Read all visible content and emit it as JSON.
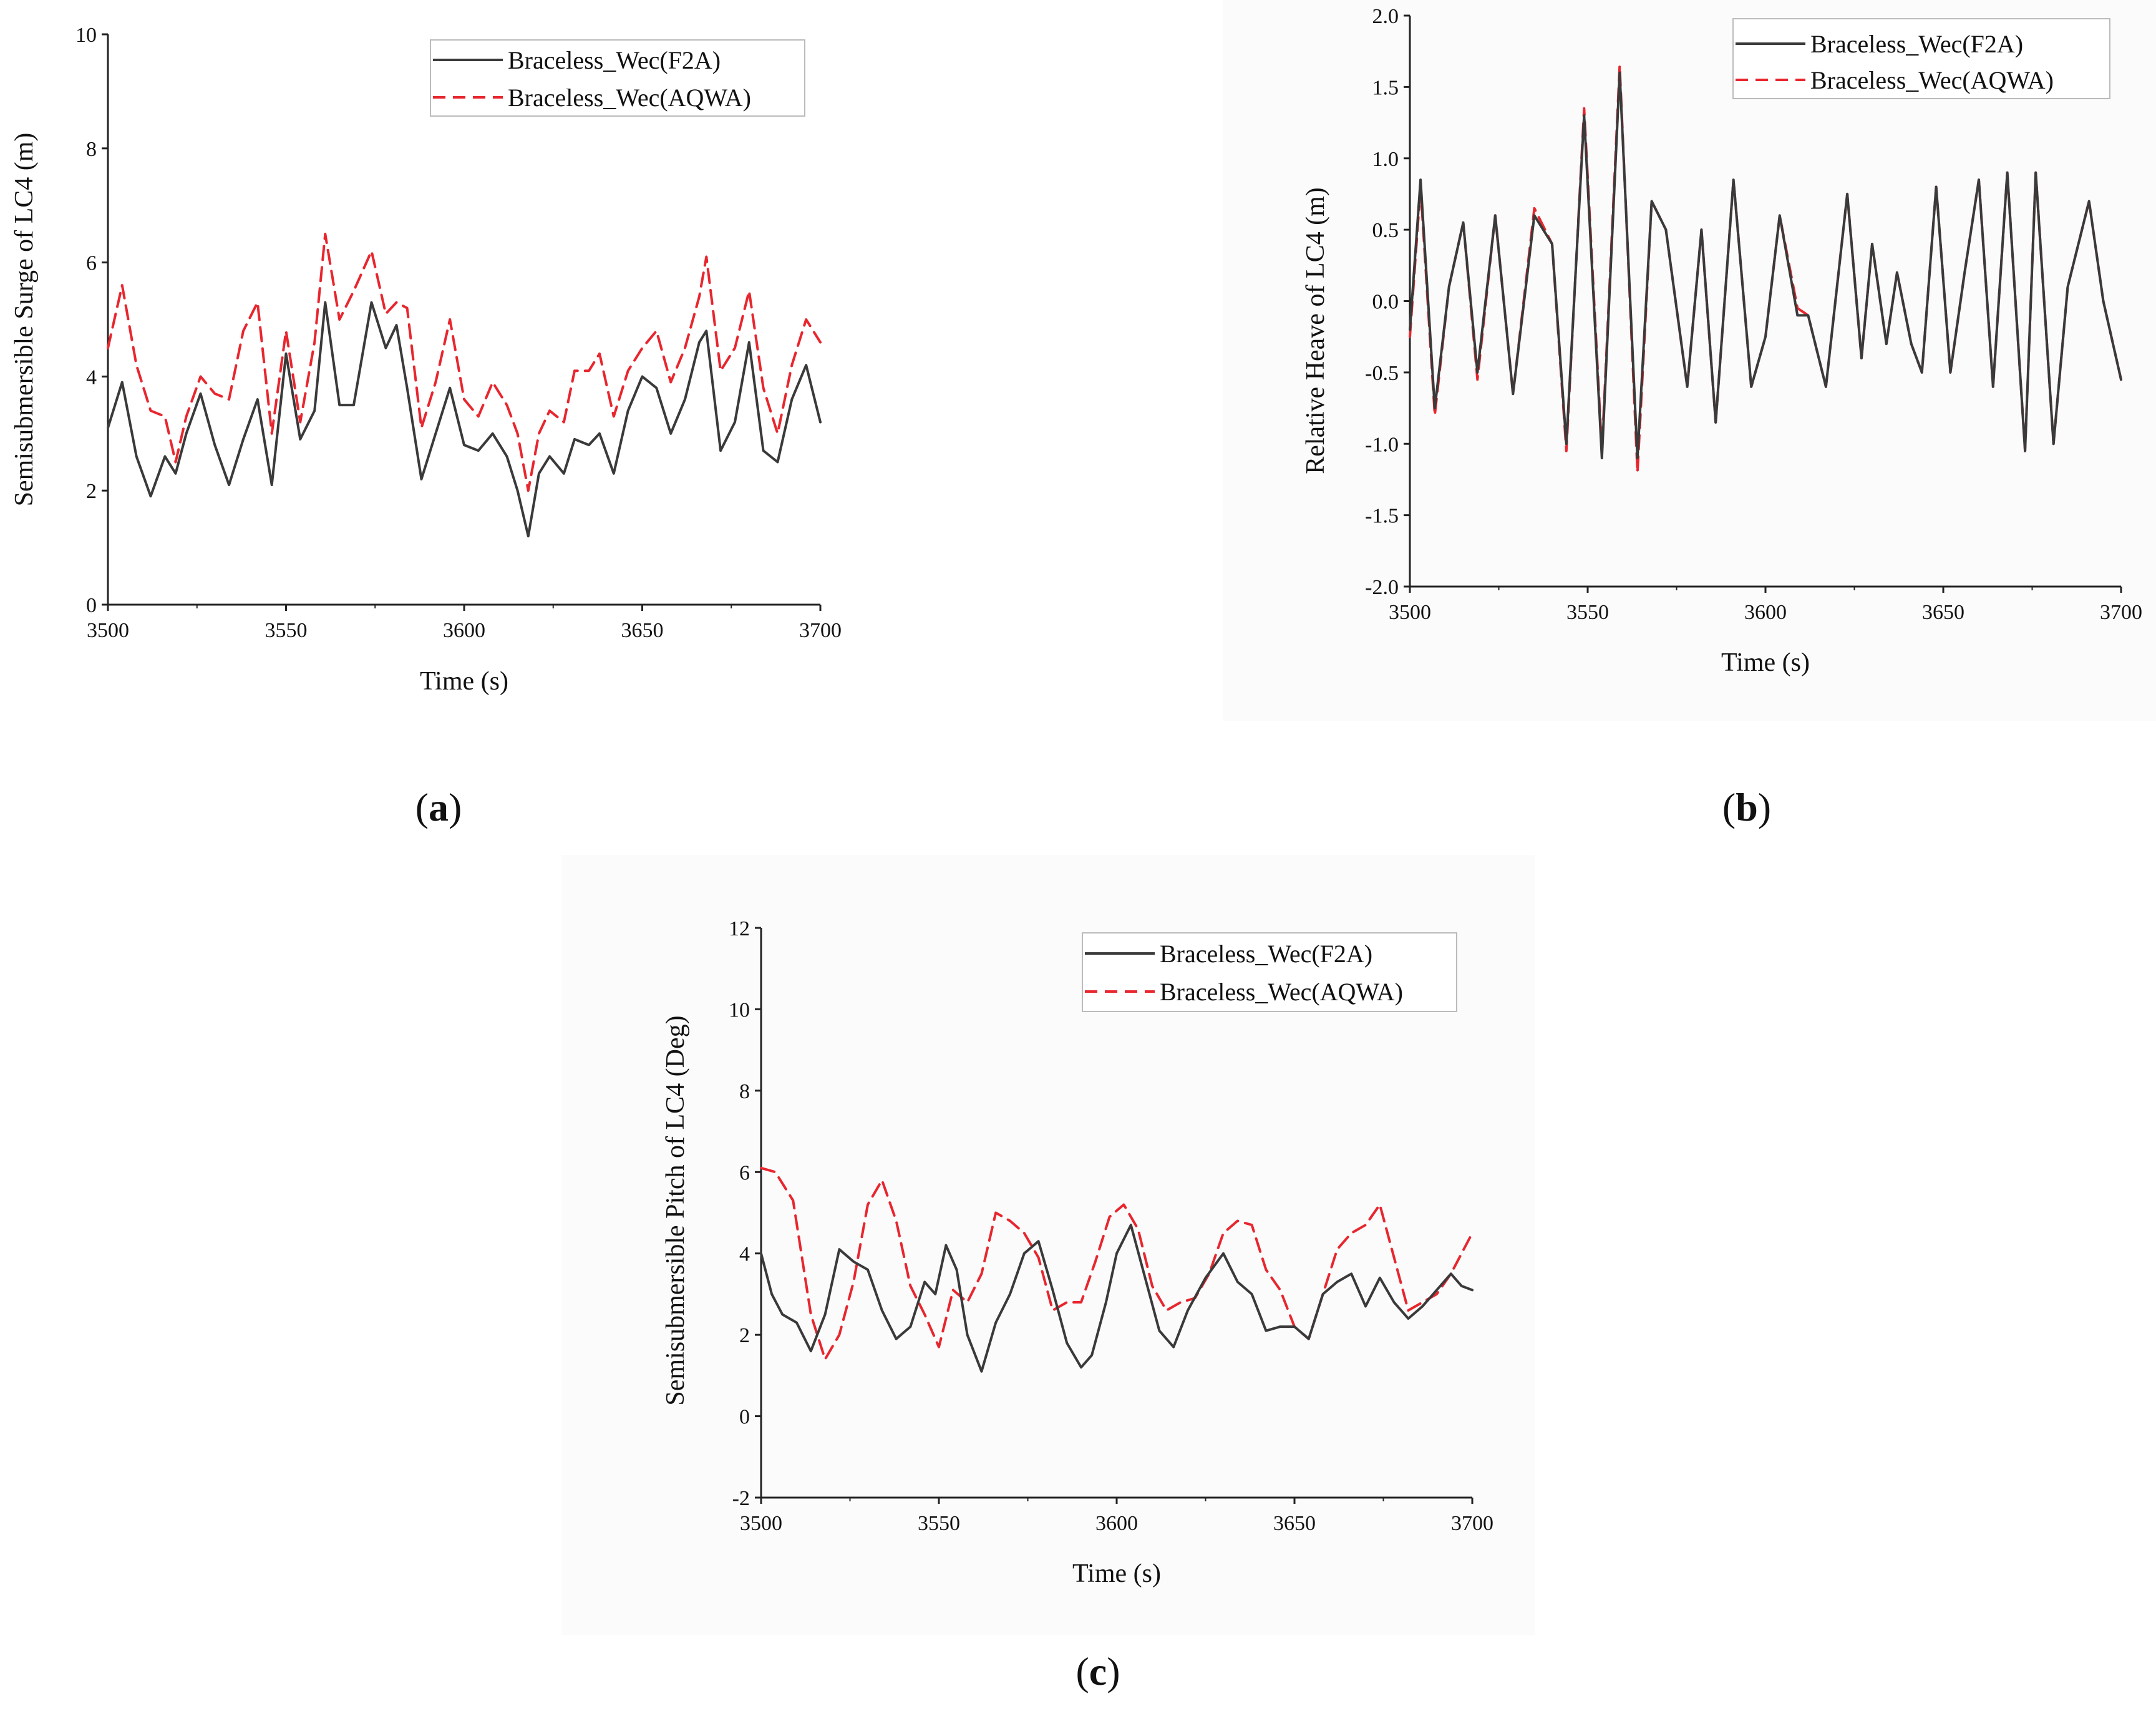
{
  "figure_title": "",
  "panels": [
    {
      "label_open": "(",
      "label_letter": "a",
      "label_close": ")"
    },
    {
      "label_open": "(",
      "label_letter": "b",
      "label_close": ")"
    },
    {
      "label_open": "(",
      "label_letter": "c",
      "label_close": ")"
    }
  ],
  "colors": {
    "f2a": "#3a3a3a",
    "aqwa": "#e8262e",
    "axis": "#222222"
  },
  "chart_data": [
    {
      "type": "line",
      "title": "",
      "xlabel": "Time (s)",
      "ylabel": "Semisubmersible Surge of LC4 (m)",
      "xlim": [
        3500,
        3700
      ],
      "ylim": [
        0,
        10
      ],
      "xticks": [
        3500,
        3550,
        3600,
        3650,
        3700
      ],
      "xtick_labels": [
        "3500",
        "3550",
        "3600",
        "3650",
        "3700"
      ],
      "yticks": [
        0,
        2,
        4,
        6,
        8,
        10
      ],
      "ytick_labels": [
        "0",
        "2",
        "4",
        "6",
        "8",
        "10"
      ],
      "legend_position": "top-right",
      "series": [
        {
          "name": "Braceless_Wec(F2A)",
          "style": "solid",
          "x": [
            3500,
            3504,
            3508,
            3512,
            3516,
            3519,
            3522,
            3526,
            3530,
            3534,
            3538,
            3542,
            3546,
            3550,
            3554,
            3558,
            3561,
            3565,
            3569,
            3574,
            3578,
            3581,
            3584,
            3588,
            3592,
            3596,
            3600,
            3604,
            3608,
            3612,
            3615,
            3618,
            3621,
            3624,
            3628,
            3631,
            3635,
            3638,
            3642,
            3646,
            3650,
            3654,
            3658,
            3662,
            3666,
            3668,
            3672,
            3676,
            3680,
            3684,
            3688,
            3692,
            3696,
            3700
          ],
          "y": [
            3.1,
            3.9,
            2.6,
            1.9,
            2.6,
            2.3,
            3.0,
            3.7,
            2.8,
            2.1,
            2.9,
            3.6,
            2.1,
            4.4,
            2.9,
            3.4,
            5.3,
            3.5,
            3.5,
            5.3,
            4.5,
            4.9,
            3.8,
            2.2,
            3.0,
            3.8,
            2.8,
            2.7,
            3.0,
            2.6,
            2.0,
            1.2,
            2.3,
            2.6,
            2.3,
            2.9,
            2.8,
            3.0,
            2.3,
            3.4,
            4.0,
            3.8,
            3.0,
            3.6,
            4.6,
            4.8,
            2.7,
            3.2,
            4.6,
            2.7,
            2.5,
            3.6,
            4.2,
            3.2
          ]
        },
        {
          "name": "Braceless_Wec(AQWA)",
          "style": "dashed",
          "x": [
            3500,
            3504,
            3508,
            3512,
            3516,
            3519,
            3522,
            3526,
            3530,
            3534,
            3538,
            3542,
            3546,
            3550,
            3554,
            3558,
            3561,
            3565,
            3569,
            3574,
            3578,
            3581,
            3584,
            3588,
            3592,
            3596,
            3600,
            3604,
            3608,
            3612,
            3615,
            3618,
            3621,
            3624,
            3628,
            3631,
            3635,
            3638,
            3642,
            3646,
            3650,
            3654,
            3658,
            3662,
            3666,
            3668,
            3672,
            3676,
            3680,
            3684,
            3688,
            3692,
            3696,
            3700
          ],
          "y": [
            4.5,
            5.6,
            4.2,
            3.4,
            3.3,
            2.5,
            3.3,
            4.0,
            3.7,
            3.6,
            4.8,
            5.3,
            3.0,
            4.8,
            3.2,
            4.6,
            6.5,
            5.0,
            5.5,
            6.2,
            5.1,
            5.3,
            5.2,
            3.1,
            3.9,
            5.0,
            3.6,
            3.3,
            3.9,
            3.5,
            3.0,
            2.0,
            3.0,
            3.4,
            3.2,
            4.1,
            4.1,
            4.4,
            3.3,
            4.1,
            4.5,
            4.8,
            3.9,
            4.5,
            5.4,
            6.1,
            4.1,
            4.5,
            5.5,
            3.8,
            3.0,
            4.2,
            5.0,
            4.6
          ]
        }
      ]
    },
    {
      "type": "line",
      "title": "",
      "xlabel": "Time (s)",
      "ylabel": "Relative Heave of LC4 (m)",
      "xlim": [
        3500,
        3700
      ],
      "ylim": [
        -2.0,
        2.0
      ],
      "xticks": [
        3500,
        3550,
        3600,
        3650,
        3700
      ],
      "xtick_labels": [
        "3500",
        "3550",
        "3600",
        "3650",
        "3700"
      ],
      "yticks": [
        -2.0,
        -1.5,
        -1.0,
        -0.5,
        0.0,
        0.5,
        1.0,
        1.5,
        2.0
      ],
      "ytick_labels": [
        "-2.0",
        "-1.5",
        "-1.0",
        "-0.5",
        "0.0",
        "0.5",
        "1.0",
        "1.5",
        "2.0"
      ],
      "legend_position": "top-right",
      "series": [
        {
          "name": "Braceless_Wec(F2A)",
          "style": "solid",
          "x": [
            3500,
            3503,
            3507,
            3511,
            3515,
            3519,
            3524,
            3529,
            3535,
            3540,
            3544,
            3549,
            3554,
            3559,
            3564,
            3568,
            3572,
            3578,
            3582,
            3586,
            3591,
            3596,
            3600,
            3604,
            3609,
            3612,
            3614,
            3617,
            3623,
            3627,
            3630,
            3634,
            3637,
            3641,
            3644,
            3648,
            3652,
            3656,
            3660,
            3664,
            3668,
            3673,
            3676,
            3681,
            3685,
            3688,
            3691,
            3695,
            3700
          ],
          "y": [
            -0.2,
            0.85,
            -0.75,
            0.1,
            0.55,
            -0.5,
            0.6,
            -0.65,
            0.6,
            0.4,
            -1.0,
            1.3,
            -1.1,
            1.6,
            -1.1,
            0.7,
            0.5,
            -0.6,
            0.5,
            -0.85,
            0.85,
            -0.6,
            -0.25,
            0.6,
            -0.1,
            -0.1,
            -0.3,
            -0.6,
            0.75,
            -0.4,
            0.4,
            -0.3,
            0.2,
            -0.3,
            -0.5,
            0.8,
            -0.5,
            0.2,
            0.85,
            -0.6,
            0.9,
            -1.05,
            0.9,
            -1.0,
            0.1,
            0.4,
            0.7,
            0.0,
            -0.55
          ]
        },
        {
          "name": "Braceless_Wec(AQWA)",
          "style": "dashed",
          "x": [
            3500,
            3503,
            3507,
            3511,
            3515,
            3519,
            3524,
            3529,
            3535,
            3540,
            3544,
            3549,
            3554,
            3559,
            3564,
            3568,
            3572,
            3578,
            3582,
            3586,
            3591,
            3596,
            3600,
            3604,
            3609,
            3612,
            3614,
            3617,
            3623,
            3627,
            3630,
            3634,
            3637,
            3641,
            3644,
            3648,
            3652,
            3656,
            3660,
            3664,
            3668,
            3673,
            3676,
            3681,
            3685,
            3688,
            3691,
            3695,
            3700
          ],
          "y": [
            -0.25,
            0.8,
            -0.8,
            0.1,
            0.55,
            -0.55,
            0.6,
            -0.65,
            0.65,
            0.4,
            -1.05,
            1.35,
            -1.05,
            1.65,
            -1.2,
            0.7,
            0.5,
            -0.6,
            0.5,
            -0.85,
            0.85,
            -0.6,
            -0.25,
            0.6,
            -0.05,
            -0.1,
            -0.3,
            -0.6,
            0.75,
            -0.4,
            0.4,
            -0.3,
            0.2,
            -0.3,
            -0.5,
            0.8,
            -0.5,
            0.2,
            0.85,
            -0.6,
            0.9,
            -1.05,
            0.9,
            -1.0,
            0.1,
            0.4,
            0.7,
            0.0,
            -0.55
          ]
        }
      ]
    },
    {
      "type": "line",
      "title": "",
      "xlabel": "Time (s)",
      "ylabel": "Semisubmersible Pitch of LC4 (Deg)",
      "xlim": [
        3500,
        3700
      ],
      "ylim": [
        -2,
        12
      ],
      "xticks": [
        3500,
        3550,
        3600,
        3650,
        3700
      ],
      "xtick_labels": [
        "3500",
        "3550",
        "3600",
        "3650",
        "3700"
      ],
      "yticks": [
        -2,
        0,
        2,
        4,
        6,
        8,
        10,
        12
      ],
      "ytick_labels": [
        "-2",
        "0",
        "2",
        "4",
        "6",
        "8",
        "10",
        "12"
      ],
      "legend_position": "top-right",
      "series": [
        {
          "name": "Braceless_Wec(F2A)",
          "style": "solid",
          "x": [
            3500,
            3503,
            3506,
            3510,
            3514,
            3518,
            3522,
            3526,
            3530,
            3534,
            3538,
            3542,
            3546,
            3549,
            3552,
            3555,
            3558,
            3562,
            3566,
            3570,
            3574,
            3578,
            3582,
            3586,
            3590,
            3593,
            3597,
            3600,
            3604,
            3608,
            3612,
            3616,
            3620,
            3625,
            3630,
            3634,
            3638,
            3642,
            3646,
            3650,
            3654,
            3658,
            3662,
            3666,
            3670,
            3674,
            3678,
            3682,
            3686,
            3690,
            3694,
            3697,
            3700
          ],
          "y": [
            4.0,
            3.0,
            2.5,
            2.3,
            1.6,
            2.5,
            4.1,
            3.8,
            3.6,
            2.6,
            1.9,
            2.2,
            3.3,
            3.0,
            4.2,
            3.6,
            2.0,
            1.1,
            2.3,
            3.0,
            4.0,
            4.3,
            3.1,
            1.8,
            1.2,
            1.5,
            2.8,
            4.0,
            4.7,
            3.4,
            2.1,
            1.7,
            2.6,
            3.4,
            4.0,
            3.3,
            3.0,
            2.1,
            2.2,
            2.2,
            1.9,
            3.0,
            3.3,
            3.5,
            2.7,
            3.4,
            2.8,
            2.4,
            2.7,
            3.1,
            3.5,
            3.2,
            3.1
          ]
        },
        {
          "name": "Braceless_Wec(AQWA)",
          "style": "dashed",
          "x": [
            3500,
            3504,
            3509,
            3514,
            3518,
            3522,
            3526,
            3530,
            3534,
            3538,
            3542,
            3546,
            3550,
            3554,
            3558,
            3562,
            3566,
            3570,
            3574,
            3578,
            3582,
            3586,
            3590,
            3594,
            3598,
            3602,
            3606,
            3610,
            3614,
            3618,
            3622,
            3626,
            3630,
            3634,
            3638,
            3642,
            3646,
            3650,
            3654,
            3658,
            3662,
            3666,
            3670,
            3674,
            3678,
            3682,
            3686,
            3690,
            3694,
            3700
          ],
          "y": [
            6.1,
            6.0,
            5.3,
            2.5,
            1.4,
            2.0,
            3.3,
            5.2,
            5.8,
            4.8,
            3.2,
            2.5,
            1.7,
            3.1,
            2.8,
            3.5,
            5.0,
            4.8,
            4.5,
            3.9,
            2.6,
            2.8,
            2.8,
            3.8,
            4.9,
            5.2,
            4.6,
            3.2,
            2.6,
            2.8,
            2.9,
            3.5,
            4.5,
            4.8,
            4.7,
            3.6,
            3.1,
            2.2,
            1.9,
            3.0,
            4.1,
            4.5,
            4.7,
            5.2,
            3.9,
            2.6,
            2.8,
            3.0,
            3.5,
            4.5
          ]
        }
      ]
    }
  ]
}
